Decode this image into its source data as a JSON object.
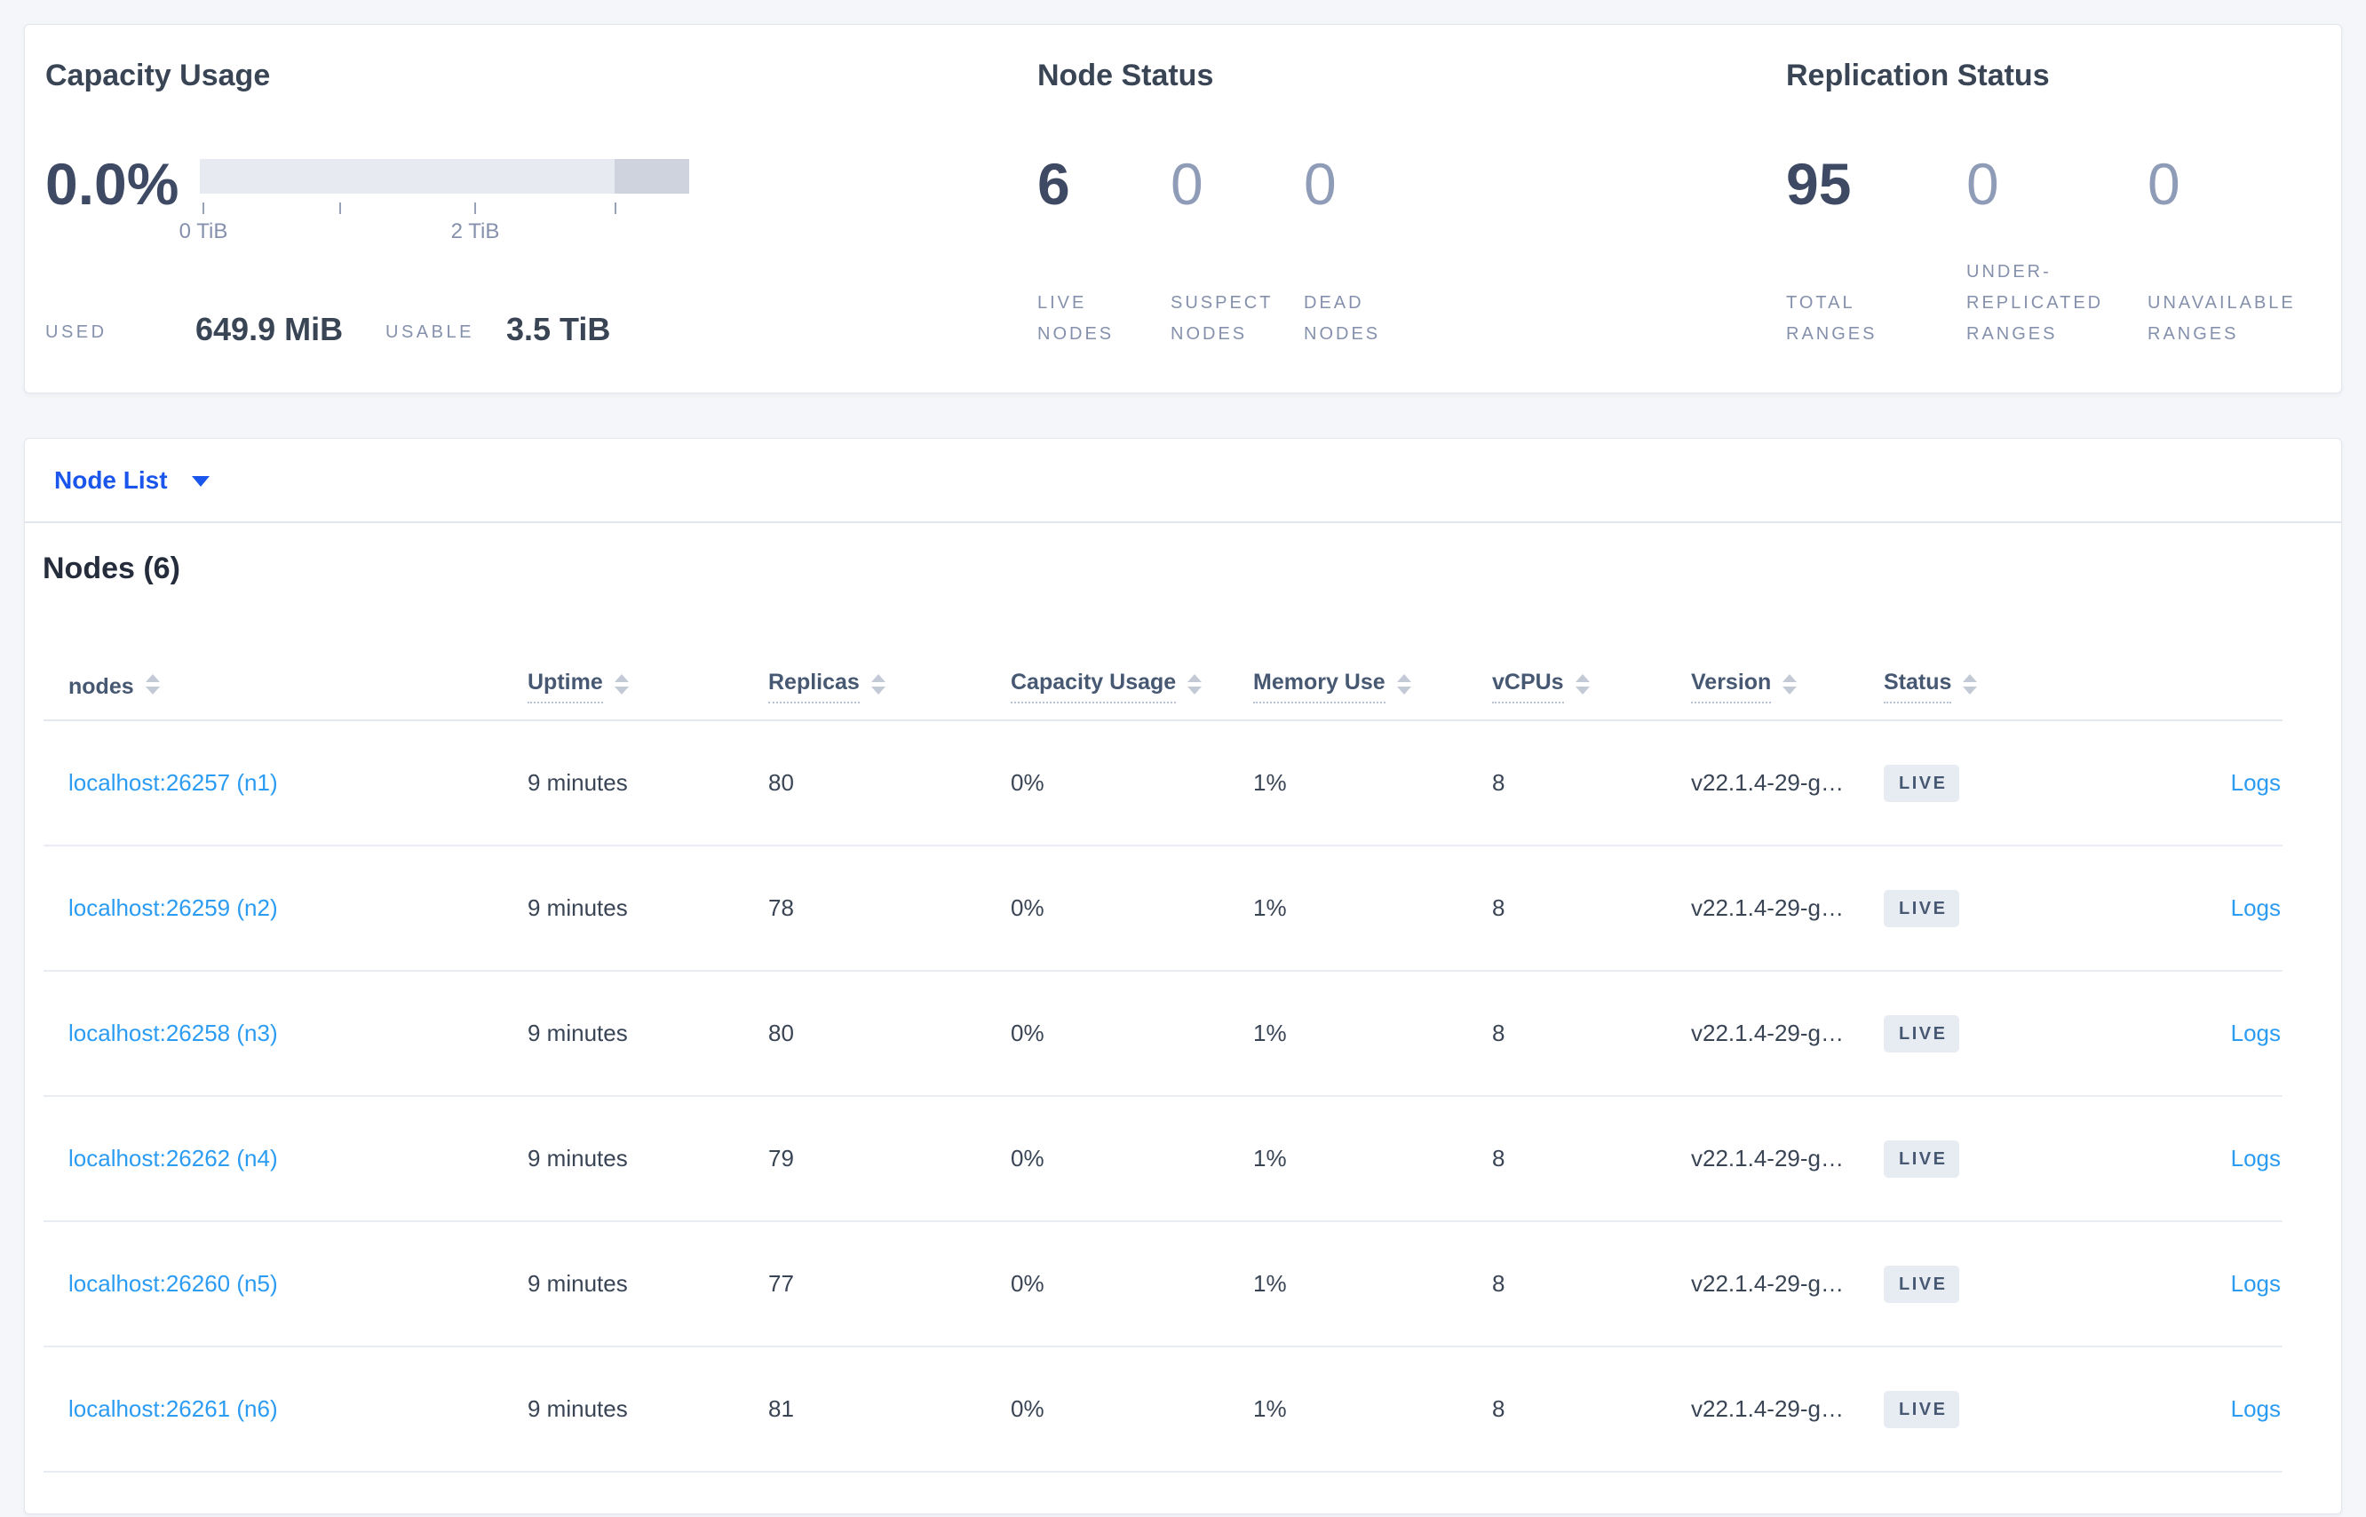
{
  "summary": {
    "capacity": {
      "title": "Capacity Usage",
      "percent": "0.0%",
      "axis_ticks": [
        "0 TiB",
        "2 TiB"
      ],
      "used_label": "USED",
      "used_value": "649.9 MiB",
      "usable_label": "USABLE",
      "usable_value": "3.5 TiB"
    },
    "node_status": {
      "title": "Node Status",
      "live": {
        "value": "6",
        "label": "LIVE NODES"
      },
      "suspect": {
        "value": "0",
        "label": "SUSPECT NODES"
      },
      "dead": {
        "value": "0",
        "label": "DEAD NODES"
      }
    },
    "replication": {
      "title": "Replication Status",
      "total": {
        "value": "95",
        "label": "TOTAL RANGES"
      },
      "under_replicated": {
        "value": "0",
        "label": "UNDER-REPLICATED RANGES"
      },
      "unavailable": {
        "value": "0",
        "label": "UNAVAILABLE RANGES"
      }
    }
  },
  "view_selector": {
    "label": "Node List"
  },
  "nodes_table": {
    "title": "Nodes (6)",
    "logs_label": "Logs",
    "columns": [
      {
        "label": "nodes"
      },
      {
        "label": "Uptime"
      },
      {
        "label": "Replicas"
      },
      {
        "label": "Capacity Usage"
      },
      {
        "label": "Memory Use"
      },
      {
        "label": "vCPUs"
      },
      {
        "label": "Version"
      },
      {
        "label": "Status"
      }
    ],
    "rows": [
      {
        "node": "localhost:26257 (n1)",
        "uptime": "9 minutes",
        "replicas": "80",
        "capacity_usage": "0%",
        "memory_use": "1%",
        "vcpus": "8",
        "version": "v22.1.4-29-g…",
        "status": "LIVE"
      },
      {
        "node": "localhost:26259 (n2)",
        "uptime": "9 minutes",
        "replicas": "78",
        "capacity_usage": "0%",
        "memory_use": "1%",
        "vcpus": "8",
        "version": "v22.1.4-29-g…",
        "status": "LIVE"
      },
      {
        "node": "localhost:26258 (n3)",
        "uptime": "9 minutes",
        "replicas": "80",
        "capacity_usage": "0%",
        "memory_use": "1%",
        "vcpus": "8",
        "version": "v22.1.4-29-g…",
        "status": "LIVE"
      },
      {
        "node": "localhost:26262 (n4)",
        "uptime": "9 minutes",
        "replicas": "79",
        "capacity_usage": "0%",
        "memory_use": "1%",
        "vcpus": "8",
        "version": "v22.1.4-29-g…",
        "status": "LIVE"
      },
      {
        "node": "localhost:26260 (n5)",
        "uptime": "9 minutes",
        "replicas": "77",
        "capacity_usage": "0%",
        "memory_use": "1%",
        "vcpus": "8",
        "version": "v22.1.4-29-g…",
        "status": "LIVE"
      },
      {
        "node": "localhost:26261 (n6)",
        "uptime": "9 minutes",
        "replicas": "81",
        "capacity_usage": "0%",
        "memory_use": "1%",
        "vcpus": "8",
        "version": "v22.1.4-29-g…",
        "status": "LIVE"
      }
    ]
  },
  "colors": {
    "accent_blue": "#1a56eb",
    "link_blue": "#2b9cf2",
    "badge_bg": "#e7ebf2",
    "dark_text": "#394455",
    "muted_text": "#8591ac"
  }
}
